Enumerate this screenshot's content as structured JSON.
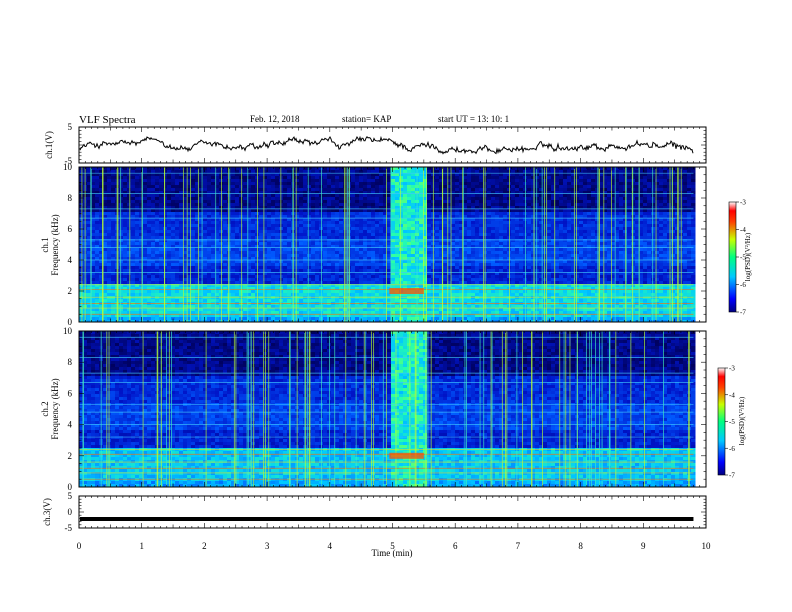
{
  "header": {
    "title": "VLF Spectra",
    "date": "Feb. 12, 2018",
    "station": "station= KAP",
    "start": "start  UT =   13: 10: 1"
  },
  "chart_data": [
    {
      "type": "line",
      "ylabel": "ch.1(V)",
      "xlim": [
        0,
        10
      ],
      "ylim": [
        -5,
        5
      ],
      "yticks": [
        "5",
        "-5"
      ],
      "note": "",
      "trace_mean": -0.5,
      "trace_amplitude": 1.3
    },
    {
      "type": "heatmap",
      "ylabel_line1": "ch.1",
      "ylabel_line2": "Frequency (kHz)",
      "xlim": [
        0,
        10
      ],
      "ylim": [
        0,
        10
      ],
      "yticks": [
        "0",
        "2",
        "4",
        "6",
        "8",
        "10"
      ],
      "data_end_min": 9.8,
      "burst_start_min": 4.95,
      "burst_end_min": 5.5,
      "colorbar": {
        "label": "log(PSD)(V²/Hz)",
        "min": -7,
        "max": -3,
        "ticks": [
          "-3",
          "-4",
          "-5",
          "-6",
          "-7"
        ]
      }
    },
    {
      "type": "heatmap",
      "ylabel_line1": "ch.2",
      "ylabel_line2": "Frequency (kHz)",
      "xlim": [
        0,
        10
      ],
      "ylim": [
        0,
        10
      ],
      "yticks": [
        "0",
        "2",
        "4",
        "6",
        "8",
        "10"
      ],
      "data_end_min": 9.8,
      "burst_start_min": 4.95,
      "burst_end_min": 5.5,
      "colorbar": {
        "label": "log(PSD)(V²/Hz)",
        "min": -7,
        "max": -3,
        "ticks": [
          "-3",
          "-4",
          "-5",
          "-6",
          "-7"
        ]
      }
    },
    {
      "type": "line",
      "ylabel": "ch.3(V)",
      "xlim": [
        0,
        10
      ],
      "ylim": [
        -5,
        5
      ],
      "yticks": [
        "5",
        "0",
        "-5"
      ],
      "trace_value": -2.2,
      "xlabel": "Time (min)",
      "xticks": [
        "0",
        "1",
        "2",
        "3",
        "4",
        "5",
        "6",
        "7",
        "8",
        "9",
        "10"
      ]
    }
  ]
}
